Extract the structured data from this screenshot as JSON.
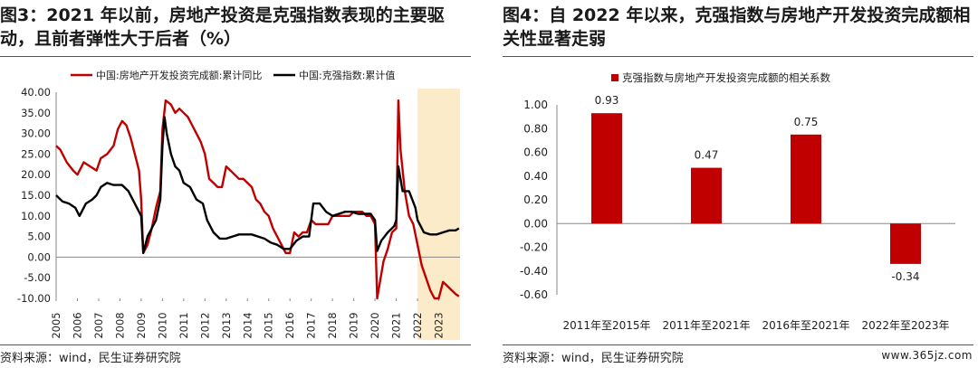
{
  "left": {
    "title": "图3：2021 年以前，房地产投资是克强指数表现的主要驱动，且前者弹性大于后者（%）",
    "source": "资料来源：wind，民生证券研究院",
    "chart_data": {
      "type": "line",
      "title": "",
      "xlabel": "",
      "ylabel": "",
      "ylim": [
        -10,
        40
      ],
      "xlim": [
        2005,
        2024
      ],
      "y_ticks": [
        "40.00",
        "35.00",
        "30.00",
        "25.00",
        "20.00",
        "15.00",
        "10.00",
        "5.00",
        "0.00",
        "-5.00",
        "-10.00"
      ],
      "x_ticks": [
        "2005",
        "2006",
        "2007",
        "2008",
        "2009",
        "2010",
        "2011",
        "2012",
        "2013",
        "2014",
        "2015",
        "2016",
        "2017",
        "2018",
        "2019",
        "2020",
        "2021",
        "2022",
        "2023"
      ],
      "highlight_region": [
        2022,
        2024
      ],
      "highlight_color": "#fcebc8",
      "legend_position": "top",
      "series": [
        {
          "name": "中国:房地产开发投资完成额:累计同比",
          "color": "#c00000",
          "x": [
            2005.0,
            2005.2,
            2005.5,
            2005.8,
            2006.0,
            2006.3,
            2006.6,
            2006.9,
            2007.1,
            2007.4,
            2007.7,
            2007.9,
            2008.1,
            2008.3,
            2008.5,
            2008.7,
            2008.9,
            2009.0,
            2009.1,
            2009.3,
            2009.5,
            2009.7,
            2009.9,
            2010.0,
            2010.15,
            2010.4,
            2010.6,
            2010.8,
            2011.0,
            2011.2,
            2011.4,
            2011.6,
            2011.8,
            2012.0,
            2012.2,
            2012.4,
            2012.6,
            2012.8,
            2013.0,
            2013.2,
            2013.4,
            2013.6,
            2013.8,
            2014.0,
            2014.2,
            2014.4,
            2014.6,
            2014.8,
            2015.0,
            2015.2,
            2015.4,
            2015.6,
            2015.8,
            2016.0,
            2016.2,
            2016.4,
            2016.6,
            2016.8,
            2017.0,
            2017.2,
            2017.4,
            2017.6,
            2017.8,
            2018.0,
            2018.2,
            2018.4,
            2018.6,
            2018.8,
            2019.0,
            2019.2,
            2019.4,
            2019.6,
            2019.8,
            2020.0,
            2020.1,
            2020.2,
            2020.4,
            2020.6,
            2020.8,
            2021.0,
            2021.1,
            2021.2,
            2021.4,
            2021.6,
            2021.8,
            2022.0,
            2022.2,
            2022.4,
            2022.6,
            2022.8,
            2023.0,
            2023.2,
            2023.4,
            2023.6,
            2023.8,
            2023.95
          ],
          "y": [
            27,
            26,
            23,
            21,
            20,
            23,
            22,
            21,
            24,
            25,
            27,
            31,
            33,
            32,
            29,
            25,
            21,
            14,
            1,
            3,
            7,
            12,
            16,
            31,
            38,
            37,
            35,
            36,
            35,
            34,
            32,
            30,
            28,
            25,
            19,
            18,
            17,
            17,
            22,
            21,
            20,
            19,
            19,
            18,
            17,
            14,
            13,
            11,
            10,
            7,
            5,
            3,
            1,
            1,
            6,
            5,
            6,
            6,
            9,
            8,
            8,
            8,
            8,
            10,
            10,
            10,
            10,
            10,
            11,
            11,
            11,
            10,
            10,
            8,
            -10,
            -7,
            -1,
            2,
            6,
            7,
            38,
            26,
            16,
            10,
            8,
            3,
            -2,
            -5,
            -8,
            -10,
            -10,
            -6,
            -7,
            -8,
            -9,
            -9.5
          ]
        },
        {
          "name": "中国:克强指数:累计值",
          "color": "#000000",
          "x": [
            2005.0,
            2005.3,
            2005.6,
            2005.9,
            2006.1,
            2006.4,
            2006.7,
            2006.9,
            2007.1,
            2007.4,
            2007.7,
            2007.9,
            2008.1,
            2008.4,
            2008.6,
            2008.8,
            2009.0,
            2009.1,
            2009.3,
            2009.5,
            2009.7,
            2009.9,
            2010.0,
            2010.1,
            2010.2,
            2010.4,
            2010.6,
            2010.8,
            2011.0,
            2011.3,
            2011.6,
            2011.9,
            2012.1,
            2012.4,
            2012.7,
            2013.0,
            2013.3,
            2013.6,
            2013.9,
            2014.2,
            2014.5,
            2014.8,
            2015.1,
            2015.4,
            2015.7,
            2016.0,
            2016.3,
            2016.6,
            2016.9,
            2017.1,
            2017.4,
            2017.7,
            2018.0,
            2018.3,
            2018.6,
            2018.9,
            2019.2,
            2019.5,
            2019.8,
            2020.0,
            2020.1,
            2020.3,
            2020.6,
            2020.9,
            2021.0,
            2021.1,
            2021.3,
            2021.6,
            2021.9,
            2022.0,
            2022.3,
            2022.6,
            2022.9,
            2023.2,
            2023.5,
            2023.8,
            2023.95
          ],
          "y": [
            15,
            13.5,
            13,
            12,
            10,
            13,
            14,
            15,
            17,
            18,
            17.5,
            17.5,
            17.5,
            16,
            14,
            12,
            10,
            1,
            5,
            7,
            9,
            14,
            27,
            34,
            30,
            25,
            22,
            21,
            18,
            17,
            14,
            13,
            9,
            6,
            4.5,
            4.5,
            5,
            5.5,
            5.5,
            5.5,
            5,
            4.5,
            3.5,
            3,
            2,
            2,
            4,
            5,
            5,
            13,
            13,
            11,
            10,
            10.5,
            11,
            11,
            10.5,
            10.5,
            10.5,
            9,
            1.5,
            4,
            6,
            7.5,
            9,
            22,
            16,
            16,
            12,
            9,
            6,
            5.5,
            5.5,
            6,
            6.5,
            6.5,
            7
          ]
        }
      ]
    }
  },
  "right": {
    "title": "图4：自 2022 年以来，克强指数与房地产开发投资完成额相关性显著走弱",
    "source": "资料来源：wind，民生证券研究院",
    "watermark": "www.365jz.com",
    "chart_data": {
      "type": "bar",
      "title": "",
      "xlabel": "",
      "ylabel": "",
      "ylim": [
        -0.6,
        1.0
      ],
      "y_ticks": [
        "1.00",
        "0.80",
        "0.60",
        "0.40",
        "0.20",
        "0.00",
        "-0.20",
        "-0.40",
        "-0.60"
      ],
      "categories": [
        "2011年至2015年",
        "2011年至2021年",
        "2016年至2021年",
        "2022年至2023年"
      ],
      "values": [
        0.93,
        0.47,
        0.75,
        -0.34
      ],
      "data_labels": [
        "0.93",
        "0.47",
        "0.75",
        "-0.34"
      ],
      "series_name": "克强指数与房地产开发投资完成额的相关系数",
      "color": "#c00000",
      "legend_position": "top-left"
    }
  }
}
